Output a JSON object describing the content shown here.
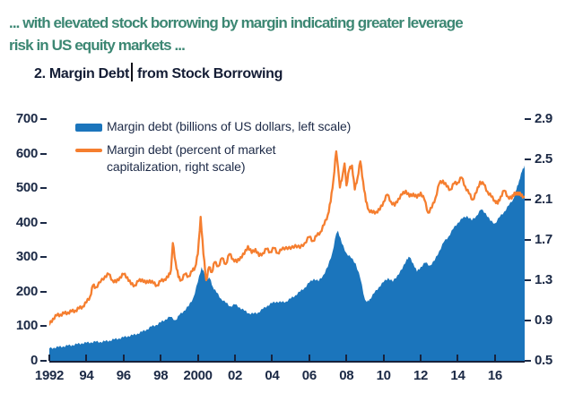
{
  "header": {
    "line1": "... with elevated stock borrowing by margin indicating greater leverage",
    "line2": "risk in US equity markets ...",
    "color": "#3c8773"
  },
  "chart": {
    "title_part1": "2. Margin Debt",
    "title_part2": "from Stock Borrowing",
    "colors": {
      "area_blue": "#1b75bc",
      "line_orange": "#f57e2f",
      "axis_navy": "#17223c",
      "label_navy": "#1b2945"
    },
    "legend": [
      {
        "type": "area",
        "color": "#1b75bc",
        "lines": [
          "Margin debt (billions of US dollars, left scale)"
        ]
      },
      {
        "type": "line",
        "color": "#f57e2f",
        "lines": [
          "Margin debt (percent of market",
          "capitalization, right scale)"
        ]
      }
    ]
  },
  "chart_data": {
    "type": "area",
    "title": "2. Margin Debt from Stock Borrowing",
    "grid": false,
    "legend_position": "top-left inside plot",
    "x_axis": {
      "range": [
        1992,
        2017.6
      ],
      "tick_years": [
        1992,
        1994,
        1996,
        1998,
        2000,
        2002,
        2004,
        2006,
        2008,
        2010,
        2012,
        2014,
        2016
      ],
      "tick_labels": [
        "1992",
        "94",
        "96",
        "98",
        "2000",
        "02",
        "04",
        "06",
        "08",
        "10",
        "12",
        "14",
        "16"
      ]
    },
    "left_axis": {
      "range": [
        0,
        700
      ],
      "ticks": [
        700,
        600,
        500,
        400,
        300,
        200,
        100,
        0
      ]
    },
    "right_axis": {
      "range": [
        0.5,
        2.9
      ],
      "ticks": [
        2.9,
        2.5,
        2.1,
        1.7,
        1.3,
        0.9,
        0.5
      ]
    },
    "series": [
      {
        "name": "Margin debt (billions of US dollars, left scale)",
        "style": "area",
        "axis": "left",
        "color": "#1b75bc",
        "points": [
          [
            1992.0,
            36
          ],
          [
            1992.25,
            38
          ],
          [
            1992.5,
            40
          ],
          [
            1992.75,
            42
          ],
          [
            1993.0,
            44
          ],
          [
            1993.25,
            46
          ],
          [
            1993.5,
            48
          ],
          [
            1993.75,
            51
          ],
          [
            1994.0,
            52
          ],
          [
            1994.25,
            54
          ],
          [
            1994.5,
            55
          ],
          [
            1994.75,
            55
          ],
          [
            1995.0,
            56
          ],
          [
            1995.25,
            59
          ],
          [
            1995.5,
            62
          ],
          [
            1995.75,
            65
          ],
          [
            1996.0,
            68
          ],
          [
            1996.25,
            72
          ],
          [
            1996.5,
            74
          ],
          [
            1996.75,
            79
          ],
          [
            1997.0,
            84
          ],
          [
            1997.25,
            91
          ],
          [
            1997.5,
            99
          ],
          [
            1997.75,
            104
          ],
          [
            1998.0,
            111
          ],
          [
            1998.25,
            120
          ],
          [
            1998.5,
            127
          ],
          [
            1998.8,
            118
          ],
          [
            1999.0,
            132
          ],
          [
            1999.25,
            145
          ],
          [
            1999.5,
            158
          ],
          [
            1999.75,
            182
          ],
          [
            2000.0,
            228
          ],
          [
            2000.2,
            272
          ],
          [
            2000.35,
            252
          ],
          [
            2000.5,
            240
          ],
          [
            2000.65,
            238
          ],
          [
            2000.8,
            215
          ],
          [
            2001.0,
            198
          ],
          [
            2001.25,
            180
          ],
          [
            2001.5,
            168
          ],
          [
            2001.75,
            158
          ],
          [
            2002.0,
            163
          ],
          [
            2002.25,
            155
          ],
          [
            2002.5,
            145
          ],
          [
            2002.75,
            138
          ],
          [
            2003.0,
            136
          ],
          [
            2003.25,
            140
          ],
          [
            2003.5,
            150
          ],
          [
            2003.75,
            160
          ],
          [
            2004.0,
            167
          ],
          [
            2004.25,
            172
          ],
          [
            2004.5,
            169
          ],
          [
            2004.75,
            172
          ],
          [
            2005.0,
            180
          ],
          [
            2005.25,
            190
          ],
          [
            2005.5,
            200
          ],
          [
            2005.75,
            212
          ],
          [
            2006.0,
            226
          ],
          [
            2006.25,
            238
          ],
          [
            2006.5,
            230
          ],
          [
            2006.75,
            248
          ],
          [
            2007.0,
            272
          ],
          [
            2007.25,
            315
          ],
          [
            2007.45,
            368
          ],
          [
            2007.55,
            377
          ],
          [
            2007.75,
            340
          ],
          [
            2008.0,
            312
          ],
          [
            2008.25,
            298
          ],
          [
            2008.5,
            282
          ],
          [
            2008.75,
            238
          ],
          [
            2009.0,
            177
          ],
          [
            2009.1,
            170
          ],
          [
            2009.25,
            178
          ],
          [
            2009.5,
            196
          ],
          [
            2009.75,
            214
          ],
          [
            2010.0,
            228
          ],
          [
            2010.25,
            240
          ],
          [
            2010.5,
            229
          ],
          [
            2010.75,
            248
          ],
          [
            2011.0,
            265
          ],
          [
            2011.25,
            295
          ],
          [
            2011.4,
            300
          ],
          [
            2011.6,
            282
          ],
          [
            2011.8,
            258
          ],
          [
            2012.0,
            272
          ],
          [
            2012.25,
            284
          ],
          [
            2012.5,
            276
          ],
          [
            2012.75,
            290
          ],
          [
            2013.0,
            318
          ],
          [
            2013.25,
            344
          ],
          [
            2013.5,
            360
          ],
          [
            2013.75,
            382
          ],
          [
            2014.0,
            400
          ],
          [
            2014.25,
            412
          ],
          [
            2014.5,
            420
          ],
          [
            2014.75,
            406
          ],
          [
            2015.0,
            420
          ],
          [
            2015.25,
            438
          ],
          [
            2015.5,
            428
          ],
          [
            2015.75,
            405
          ],
          [
            2016.0,
            398
          ],
          [
            2016.25,
            416
          ],
          [
            2016.5,
            432
          ],
          [
            2016.75,
            450
          ],
          [
            2017.0,
            470
          ],
          [
            2017.15,
            495
          ],
          [
            2017.3,
            522
          ],
          [
            2017.45,
            548
          ],
          [
            2017.6,
            566
          ]
        ]
      },
      {
        "name": "Margin debt (percent of market capitalization, right scale)",
        "style": "line",
        "axis": "right",
        "color": "#f57e2f",
        "points": [
          [
            1992.0,
            0.86
          ],
          [
            1992.2,
            0.92
          ],
          [
            1992.4,
            0.95
          ],
          [
            1992.6,
            0.96
          ],
          [
            1992.8,
            0.97
          ],
          [
            1993.0,
            0.98
          ],
          [
            1993.2,
            0.99
          ],
          [
            1993.4,
            1.0
          ],
          [
            1993.6,
            1.02
          ],
          [
            1993.8,
            1.04
          ],
          [
            1994.0,
            1.08
          ],
          [
            1994.2,
            1.14
          ],
          [
            1994.35,
            1.25
          ],
          [
            1994.5,
            1.23
          ],
          [
            1994.75,
            1.28
          ],
          [
            1995.0,
            1.34
          ],
          [
            1995.2,
            1.36
          ],
          [
            1995.4,
            1.3
          ],
          [
            1995.6,
            1.28
          ],
          [
            1995.8,
            1.33
          ],
          [
            1996.0,
            1.36
          ],
          [
            1996.2,
            1.33
          ],
          [
            1996.4,
            1.26
          ],
          [
            1996.6,
            1.25
          ],
          [
            1996.8,
            1.29
          ],
          [
            1997.0,
            1.31
          ],
          [
            1997.2,
            1.27
          ],
          [
            1997.4,
            1.3
          ],
          [
            1997.6,
            1.27
          ],
          [
            1997.8,
            1.25
          ],
          [
            1998.0,
            1.29
          ],
          [
            1998.2,
            1.31
          ],
          [
            1998.4,
            1.33
          ],
          [
            1998.55,
            1.4
          ],
          [
            1998.65,
            1.67
          ],
          [
            1998.8,
            1.48
          ],
          [
            1998.95,
            1.33
          ],
          [
            1999.1,
            1.3
          ],
          [
            1999.3,
            1.36
          ],
          [
            1999.5,
            1.34
          ],
          [
            1999.7,
            1.39
          ],
          [
            1999.85,
            1.43
          ],
          [
            2000.0,
            1.56
          ],
          [
            2000.15,
            1.93
          ],
          [
            2000.3,
            1.56
          ],
          [
            2000.45,
            1.3
          ],
          [
            2000.6,
            1.43
          ],
          [
            2000.75,
            1.38
          ],
          [
            2000.9,
            1.48
          ],
          [
            2001.1,
            1.44
          ],
          [
            2001.3,
            1.52
          ],
          [
            2001.5,
            1.46
          ],
          [
            2001.7,
            1.56
          ],
          [
            2001.9,
            1.51
          ],
          [
            2002.1,
            1.48
          ],
          [
            2002.3,
            1.53
          ],
          [
            2002.5,
            1.56
          ],
          [
            2002.7,
            1.64
          ],
          [
            2002.9,
            1.57
          ],
          [
            2003.1,
            1.61
          ],
          [
            2003.3,
            1.54
          ],
          [
            2003.5,
            1.57
          ],
          [
            2003.7,
            1.61
          ],
          [
            2003.9,
            1.58
          ],
          [
            2004.1,
            1.62
          ],
          [
            2004.3,
            1.57
          ],
          [
            2004.5,
            1.6
          ],
          [
            2004.75,
            1.63
          ],
          [
            2005.0,
            1.61
          ],
          [
            2005.25,
            1.65
          ],
          [
            2005.5,
            1.62
          ],
          [
            2005.75,
            1.67
          ],
          [
            2006.0,
            1.73
          ],
          [
            2006.2,
            1.69
          ],
          [
            2006.4,
            1.74
          ],
          [
            2006.6,
            1.78
          ],
          [
            2006.8,
            1.85
          ],
          [
            2007.0,
            1.95
          ],
          [
            2007.15,
            2.08
          ],
          [
            2007.3,
            2.3
          ],
          [
            2007.45,
            2.58
          ],
          [
            2007.55,
            2.42
          ],
          [
            2007.65,
            2.22
          ],
          [
            2007.8,
            2.35
          ],
          [
            2007.9,
            2.46
          ],
          [
            2008.0,
            2.24
          ],
          [
            2008.15,
            2.4
          ],
          [
            2008.3,
            2.44
          ],
          [
            2008.45,
            2.2
          ],
          [
            2008.6,
            2.32
          ],
          [
            2008.75,
            2.48
          ],
          [
            2008.9,
            2.28
          ],
          [
            2009.05,
            2.08
          ],
          [
            2009.2,
            2.0
          ],
          [
            2009.4,
            1.97
          ],
          [
            2009.6,
            1.98
          ],
          [
            2009.8,
            2.0
          ],
          [
            2010.0,
            2.08
          ],
          [
            2010.2,
            2.15
          ],
          [
            2010.4,
            2.08
          ],
          [
            2010.6,
            2.04
          ],
          [
            2010.8,
            2.11
          ],
          [
            2011.0,
            2.15
          ],
          [
            2011.2,
            2.19
          ],
          [
            2011.4,
            2.13
          ],
          [
            2011.6,
            2.16
          ],
          [
            2011.8,
            2.12
          ],
          [
            2012.0,
            2.17
          ],
          [
            2012.2,
            2.1
          ],
          [
            2012.4,
            1.97
          ],
          [
            2012.6,
            2.02
          ],
          [
            2012.8,
            2.12
          ],
          [
            2013.0,
            2.26
          ],
          [
            2013.2,
            2.29
          ],
          [
            2013.4,
            2.23
          ],
          [
            2013.6,
            2.2
          ],
          [
            2013.8,
            2.26
          ],
          [
            2014.0,
            2.27
          ],
          [
            2014.2,
            2.32
          ],
          [
            2014.4,
            2.23
          ],
          [
            2014.6,
            2.16
          ],
          [
            2014.8,
            2.1
          ],
          [
            2015.0,
            2.17
          ],
          [
            2015.2,
            2.28
          ],
          [
            2015.4,
            2.25
          ],
          [
            2015.6,
            2.18
          ],
          [
            2015.8,
            2.13
          ],
          [
            2016.0,
            2.09
          ],
          [
            2016.15,
            2.06
          ],
          [
            2016.3,
            2.13
          ],
          [
            2016.5,
            2.19
          ],
          [
            2016.7,
            2.13
          ],
          [
            2016.9,
            2.11
          ],
          [
            2017.05,
            2.17
          ],
          [
            2017.2,
            2.15
          ],
          [
            2017.35,
            2.17
          ],
          [
            2017.5,
            2.12
          ],
          [
            2017.6,
            2.13
          ]
        ]
      }
    ]
  }
}
